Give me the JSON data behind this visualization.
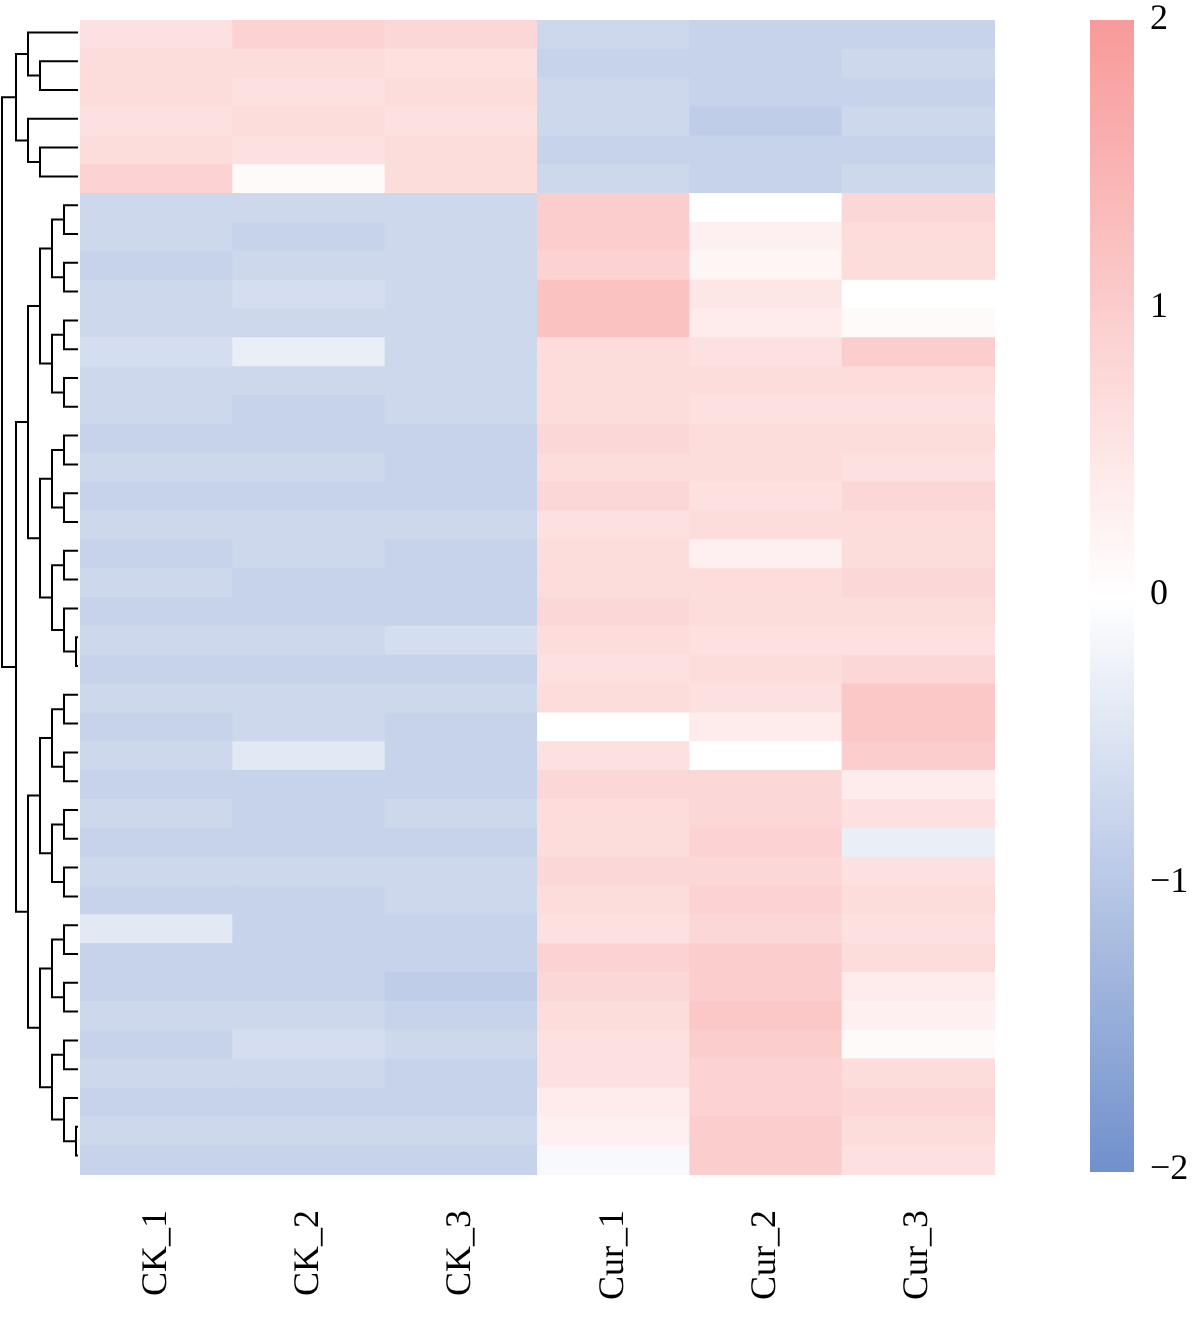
{
  "chart_data": {
    "type": "heatmap",
    "categories": [
      "CK_1",
      "CK_2",
      "CK_3",
      "Cur_1",
      "Cur_2",
      "Cur_3"
    ],
    "y_categories": [
      null,
      null,
      null,
      null,
      null,
      null,
      null,
      null,
      null,
      null,
      null,
      null,
      null,
      null,
      null,
      null,
      null,
      null,
      null,
      null,
      null,
      null,
      null,
      null,
      null,
      null,
      null,
      null,
      null,
      null,
      null,
      null,
      null,
      null,
      null,
      null,
      null,
      null,
      null,
      null
    ],
    "cells": [
      [
        0.6,
        0.9,
        0.8,
        -0.7,
        -0.8,
        -0.8
      ],
      [
        0.7,
        0.7,
        0.6,
        -0.8,
        -0.8,
        -0.7
      ],
      [
        0.7,
        0.6,
        0.7,
        -0.7,
        -0.8,
        -0.8
      ],
      [
        0.6,
        0.7,
        0.6,
        -0.7,
        -0.9,
        -0.7
      ],
      [
        0.7,
        0.6,
        0.7,
        -0.8,
        -0.8,
        -0.8
      ],
      [
        0.9,
        0.1,
        0.7,
        -0.7,
        -0.8,
        -0.7
      ],
      [
        -0.7,
        -0.7,
        -0.7,
        1.0,
        0.0,
        0.8
      ],
      [
        -0.7,
        -0.8,
        -0.7,
        1.0,
        0.3,
        0.7
      ],
      [
        -0.8,
        -0.7,
        -0.7,
        0.9,
        0.2,
        0.7
      ],
      [
        -0.7,
        -0.6,
        -0.7,
        1.2,
        0.5,
        0.0
      ],
      [
        -0.7,
        -0.7,
        -0.7,
        1.2,
        0.4,
        0.1
      ],
      [
        -0.6,
        -0.3,
        -0.7,
        0.7,
        0.6,
        1.0
      ],
      [
        -0.7,
        -0.7,
        -0.7,
        0.7,
        0.7,
        0.7
      ],
      [
        -0.7,
        -0.8,
        -0.7,
        0.7,
        0.6,
        0.6
      ],
      [
        -0.8,
        -0.8,
        -0.8,
        0.8,
        0.7,
        0.7
      ],
      [
        -0.7,
        -0.7,
        -0.8,
        0.7,
        0.7,
        0.6
      ],
      [
        -0.8,
        -0.8,
        -0.8,
        0.8,
        0.6,
        0.8
      ],
      [
        -0.7,
        -0.7,
        -0.7,
        0.6,
        0.7,
        0.7
      ],
      [
        -0.8,
        -0.7,
        -0.8,
        0.7,
        0.3,
        0.7
      ],
      [
        -0.7,
        -0.8,
        -0.8,
        0.7,
        0.7,
        0.8
      ],
      [
        -0.8,
        -0.8,
        -0.8,
        0.8,
        0.7,
        0.7
      ],
      [
        -0.7,
        -0.7,
        -0.6,
        0.7,
        0.6,
        0.6
      ],
      [
        -0.8,
        -0.8,
        -0.8,
        0.6,
        0.7,
        0.8
      ],
      [
        -0.7,
        -0.7,
        -0.7,
        0.7,
        0.6,
        1.1
      ],
      [
        -0.8,
        -0.7,
        -0.8,
        0.0,
        0.4,
        1.1
      ],
      [
        -0.7,
        -0.4,
        -0.8,
        0.6,
        0.0,
        1.0
      ],
      [
        -0.8,
        -0.8,
        -0.8,
        0.8,
        0.8,
        0.4
      ],
      [
        -0.7,
        -0.8,
        -0.7,
        0.7,
        0.8,
        0.6
      ],
      [
        -0.8,
        -0.8,
        -0.8,
        0.7,
        0.9,
        -0.3
      ],
      [
        -0.7,
        -0.7,
        -0.7,
        0.8,
        0.8,
        0.6
      ],
      [
        -0.8,
        -0.8,
        -0.7,
        0.7,
        0.9,
        0.7
      ],
      [
        -0.4,
        -0.8,
        -0.8,
        0.6,
        0.8,
        0.6
      ],
      [
        -0.8,
        -0.8,
        -0.8,
        0.9,
        1.0,
        0.7
      ],
      [
        -0.8,
        -0.8,
        -0.9,
        0.8,
        1.0,
        0.4
      ],
      [
        -0.7,
        -0.7,
        -0.8,
        0.7,
        1.1,
        0.3
      ],
      [
        -0.8,
        -0.6,
        -0.7,
        0.6,
        1.0,
        0.1
      ],
      [
        -0.7,
        -0.7,
        -0.8,
        0.6,
        0.9,
        0.7
      ],
      [
        -0.8,
        -0.8,
        -0.8,
        0.4,
        0.9,
        0.8
      ],
      [
        -0.7,
        -0.7,
        -0.7,
        0.3,
        1.0,
        0.7
      ],
      [
        -0.8,
        -0.8,
        -0.8,
        -0.1,
        1.0,
        0.6
      ]
    ],
    "clim": [
      -2,
      2
    ],
    "cticks": [
      {
        "value": -2,
        "label": "−2"
      },
      {
        "value": -1,
        "label": "−1"
      },
      0,
      1,
      2
    ]
  }
}
